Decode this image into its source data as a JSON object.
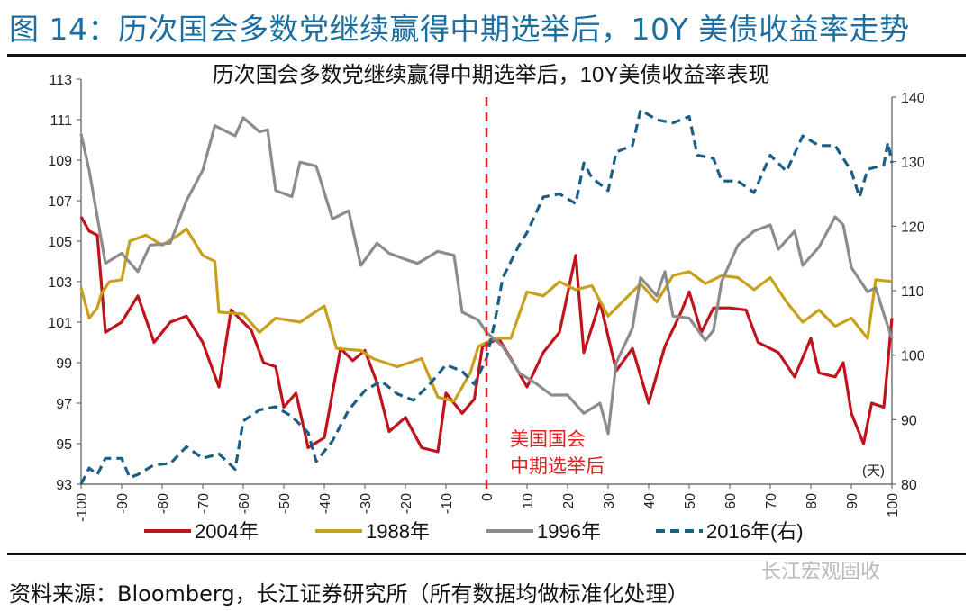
{
  "figure_title": "图 14：历次国会多数党继续赢得中期选举后，10Y 美债收益率走势",
  "source": "资料来源：Bloomberg，长江证券研究所（所有数据均做标准化处理）",
  "watermark": "长江宏观固收",
  "chart_data": {
    "type": "line",
    "title": "历次国会多数党继续赢得中期选举后，10Y美债收益率表现",
    "xlabel": "(天)",
    "xlim": [
      -100,
      100
    ],
    "xticks": [
      "-100",
      "-90",
      "-80",
      "-70",
      "-60",
      "-50",
      "-40",
      "-30",
      "-20",
      "-10",
      "0",
      "10",
      "20",
      "30",
      "40",
      "50",
      "60",
      "70",
      "80",
      "90",
      "100"
    ],
    "ylim_left": [
      93,
      113
    ],
    "yticks_left": [
      "93",
      "95",
      "97",
      "99",
      "101",
      "103",
      "105",
      "107",
      "109",
      "111",
      "113"
    ],
    "ylim_right": [
      80,
      140
    ],
    "yticks_right": [
      "80",
      "90",
      "100",
      "110",
      "120",
      "130",
      "140"
    ],
    "grid": false,
    "legend_placement": "bottom",
    "annotation": {
      "x": 0,
      "lines": [
        "美国国会",
        "中期选举后"
      ],
      "color": "#e02020"
    },
    "series": [
      {
        "name": "2004年",
        "axis": "left",
        "color": "#c0141c",
        "dash": false,
        "x": [
          -100,
          -98,
          -96,
          -94,
          -90,
          -86,
          -82,
          -78,
          -74,
          -70,
          -66,
          -63,
          -58,
          -55,
          -52,
          -50,
          -47,
          -44,
          -40,
          -36,
          -33,
          -30,
          -27,
          -24,
          -20,
          -16,
          -12,
          -10,
          -6,
          -3,
          -1,
          3,
          6,
          10,
          14,
          18,
          22,
          24,
          28,
          32,
          36,
          40,
          44,
          48,
          50,
          53,
          56,
          60,
          64,
          67,
          72,
          76,
          80,
          82,
          86,
          88,
          90,
          93,
          95,
          98,
          100
        ],
        "y": [
          106.2,
          105.5,
          105.3,
          100.5,
          101,
          102.3,
          100,
          101,
          101.3,
          100,
          97.8,
          101.6,
          100.6,
          99,
          98.8,
          96.8,
          97.5,
          94.8,
          95.3,
          99.7,
          99.1,
          99.6,
          98,
          95.6,
          96.3,
          94.8,
          94.6,
          97.5,
          96.5,
          97.2,
          99.8,
          100.2,
          99.2,
          97.8,
          99.5,
          100.5,
          104.3,
          99.5,
          102,
          98.6,
          99.7,
          97,
          99.8,
          101.5,
          102.5,
          100.5,
          101.7,
          101.7,
          101.6,
          100,
          99.5,
          98.3,
          100.2,
          98.5,
          98.3,
          99,
          96.5,
          95,
          97,
          96.8,
          101.2
        ]
      },
      {
        "name": "1988年",
        "axis": "left",
        "color": "#c9a01c",
        "dash": false,
        "x": [
          -100,
          -98,
          -96,
          -95,
          -93,
          -90,
          -88,
          -84,
          -80,
          -76,
          -74,
          -70,
          -67,
          -66,
          -60,
          -56,
          -52,
          -46,
          -40,
          -37,
          -31,
          -28,
          -22,
          -16,
          -12,
          -8,
          -4,
          -2,
          0,
          2,
          6,
          10,
          14,
          18,
          22,
          26,
          30,
          34,
          38,
          42,
          46,
          50,
          54,
          58,
          62,
          66,
          70,
          74,
          78,
          82,
          86,
          90,
          94,
          96,
          100
        ],
        "y": [
          102.7,
          101.2,
          101.7,
          102.4,
          103,
          103.1,
          105,
          105.3,
          104.8,
          105.3,
          105.6,
          104.3,
          104,
          101.5,
          101.4,
          100.5,
          101.2,
          101,
          101.8,
          99.7,
          99.6,
          99.2,
          98.8,
          99.2,
          97.3,
          97.1,
          98.5,
          99.8,
          100,
          100.2,
          100.2,
          102.5,
          102.3,
          103,
          102.6,
          102.8,
          101.3,
          102.1,
          102.9,
          102,
          103.3,
          103.5,
          102.9,
          103.3,
          103.2,
          102.6,
          103.2,
          102,
          101,
          101.6,
          100.8,
          101.2,
          100.2,
          103.1,
          103
        ]
      },
      {
        "name": "1996年",
        "axis": "left",
        "color": "#8c8c8c",
        "dash": false,
        "x": [
          -100,
          -98,
          -94,
          -90,
          -86,
          -83,
          -78,
          -74,
          -70,
          -67,
          -62,
          -60,
          -56,
          -54,
          -52,
          -48,
          -46,
          -42,
          -38,
          -34,
          -31,
          -27,
          -24,
          -20,
          -17,
          -12,
          -8,
          -6,
          -2,
          0,
          4,
          8,
          12,
          16,
          20,
          24,
          28,
          30,
          32,
          36,
          38,
          42,
          44,
          46,
          50,
          54,
          56,
          58,
          62,
          66,
          70,
          72,
          76,
          78,
          82,
          86,
          88,
          90,
          94,
          96,
          98,
          100
        ],
        "y": [
          110.3,
          108.5,
          103.9,
          104.4,
          103.5,
          104.8,
          104.9,
          107,
          108.5,
          110.7,
          110.2,
          111.1,
          110.4,
          110.5,
          107.5,
          107.2,
          108.9,
          108.7,
          106.1,
          106.5,
          103.8,
          104.9,
          104.4,
          104.1,
          103.9,
          104.5,
          104.3,
          101.5,
          101.1,
          100.5,
          99.8,
          98.5,
          98,
          97.4,
          97.4,
          96.5,
          97,
          95.5,
          99,
          100.7,
          103.2,
          102.3,
          103.5,
          101.3,
          101.2,
          100.1,
          100.6,
          103,
          104.8,
          105.5,
          105.8,
          104.6,
          105.5,
          103.8,
          104.7,
          106.2,
          105.8,
          103.7,
          102.5,
          102.7,
          101.4,
          100.2
        ]
      },
      {
        "name": "2016年(右)",
        "axis": "right",
        "color": "#1b5f86",
        "dash": true,
        "x": [
          -100,
          -98,
          -96,
          -94,
          -90,
          -88,
          -86,
          -82,
          -78,
          -74,
          -70,
          -66,
          -62,
          -60,
          -56,
          -52,
          -48,
          -44,
          -42,
          -38,
          -34,
          -30,
          -26,
          -22,
          -18,
          -14,
          -10,
          -6,
          -3,
          0,
          2,
          4,
          8,
          10,
          14,
          18,
          22,
          24,
          26,
          30,
          32,
          36,
          38,
          42,
          46,
          50,
          52,
          56,
          58,
          62,
          66,
          70,
          74,
          78,
          82,
          86,
          90,
          92,
          94,
          98,
          99,
          100
        ],
        "y": [
          80,
          82.5,
          81.5,
          84,
          84,
          81,
          81.5,
          83,
          83.2,
          85.8,
          84,
          84.7,
          82.3,
          89.8,
          91.5,
          92,
          90.5,
          88,
          83.5,
          86.7,
          91.5,
          94.5,
          96,
          94,
          93,
          95.5,
          98.5,
          97.5,
          95.5,
          99.5,
          105,
          112,
          117,
          119,
          124.5,
          125,
          123.5,
          129.8,
          127.5,
          125.5,
          131.5,
          132.5,
          138,
          136.5,
          136,
          137,
          131,
          130.5,
          127,
          127,
          125.2,
          131,
          128.5,
          134,
          132.5,
          132.5,
          128.5,
          124.5,
          128.8,
          129.5,
          133,
          129.8
        ]
      }
    ]
  }
}
